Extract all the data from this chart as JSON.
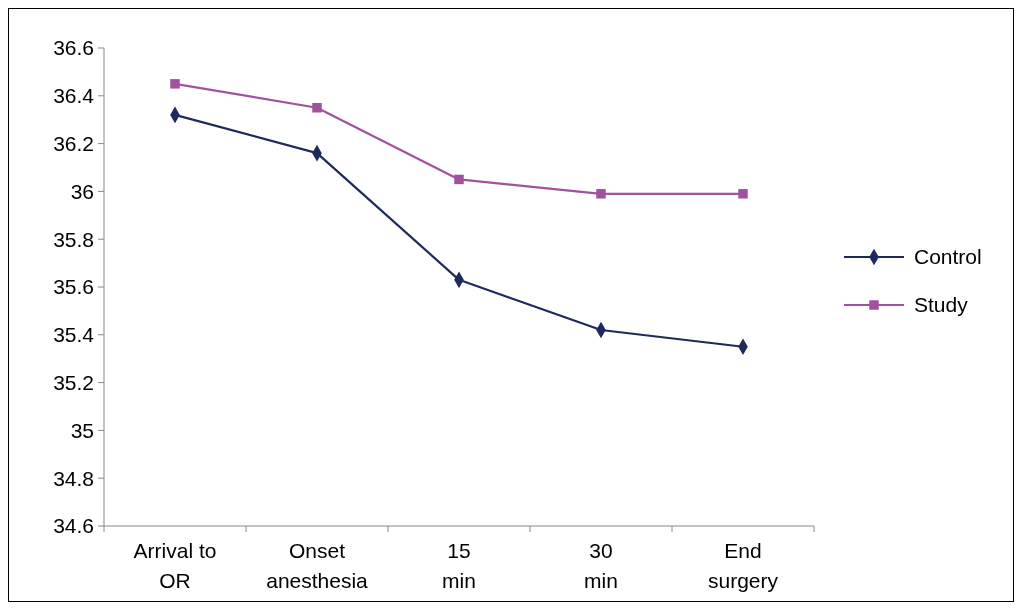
{
  "chart_data": {
    "type": "line",
    "categories": [
      "Arrival to OR",
      "Onset anesthesia",
      "15 min",
      "30 min",
      "End surgery"
    ],
    "series": [
      {
        "name": "Control",
        "color": "#1f2a5c",
        "marker": "diamond",
        "values": [
          36.32,
          36.16,
          35.63,
          35.42,
          35.35
        ]
      },
      {
        "name": "Study",
        "color": "#a0529f",
        "marker": "square",
        "values": [
          36.45,
          36.35,
          36.05,
          35.99,
          35.99
        ]
      }
    ],
    "ylim": [
      34.6,
      36.6
    ],
    "yticks": [
      34.6,
      34.8,
      35,
      35.2,
      35.4,
      35.6,
      35.8,
      36,
      36.2,
      36.4,
      36.6
    ],
    "grid": false,
    "legend": "right",
    "line_style": "solid"
  }
}
